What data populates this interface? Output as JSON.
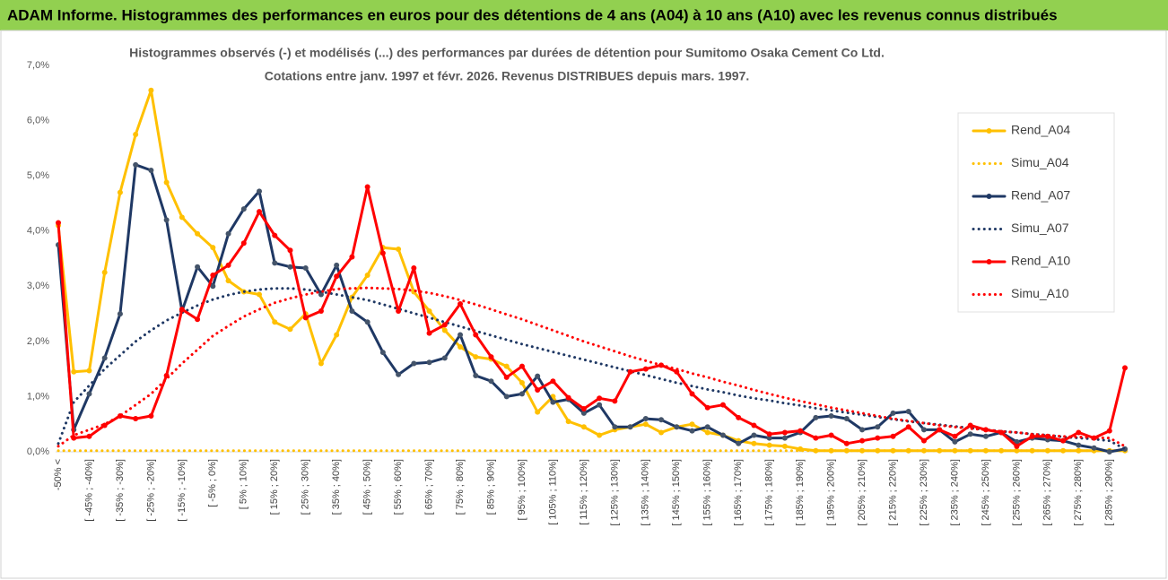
{
  "header": "ADAM Informe. Histogrammes des performances en euros pour des détentions de 4 ans (A04) à 10 ans (A10) avec les revenus connus distribués",
  "chart_data": {
    "type": "line",
    "title": "Histogrammes observés (-) et modélisés (...) des performances par durées de détention pour Sumitomo Osaka Cement Co Ltd.",
    "subtitle": "Cotations entre janv. 1997 et févr. 2026. Revenus DISTRIBUES depuis mars. 1997.",
    "categories": [
      "-50% <",
      null,
      "[ -45% ; -40%]",
      null,
      "[ -35% ; -30%]",
      null,
      "[ -25% ; -20%]",
      null,
      "[ -15% ; -10%]",
      null,
      "[ -5% ; 0%]",
      null,
      "[ 5% ; 10%]",
      null,
      "[ 15% ; 20%]",
      null,
      "[ 25% ; 30%]",
      null,
      "[ 35% ; 40%]",
      null,
      "[ 45% ; 50%]",
      null,
      "[ 55% ; 60%]",
      null,
      "[ 65% ; 70%]",
      null,
      "[ 75% ; 80%]",
      null,
      "[ 85% ; 90%]",
      null,
      "[ 95% ; 100%]",
      null,
      "[ 105% ; 110%]",
      null,
      "[ 115% ; 120%]",
      null,
      "[ 125% ; 130%]",
      null,
      "[ 135% ; 140%]",
      null,
      "[ 145% ; 150%]",
      null,
      "[ 155% ; 160%]",
      null,
      "[ 165% ; 170%]",
      null,
      "[ 175% ; 180%]",
      null,
      "[ 185% ; 190%]",
      null,
      "[ 195% ; 200%]",
      null,
      "[ 205% ; 210%]",
      null,
      "[ 215% ; 220%]",
      null,
      "[ 225% ; 230%]",
      null,
      "[ 235% ; 240%]",
      null,
      "[ 245% ; 250%]",
      null,
      "[ 255% ; 260%]",
      null,
      "[ 265% ; 270%]",
      null,
      "[ 275% ; 280%]",
      null,
      "[ 285% ; 290%]",
      null
    ],
    "series": [
      {
        "name": "Rend_A04",
        "color": "#ffc000",
        "line_style": "solid",
        "markers": true,
        "values": [
          4.1,
          1.45,
          1.47,
          3.25,
          4.7,
          5.75,
          6.55,
          4.88,
          4.25,
          3.95,
          3.7,
          3.1,
          2.9,
          2.85,
          2.35,
          2.22,
          2.5,
          1.6,
          2.12,
          2.8,
          3.2,
          3.7,
          3.67,
          2.9,
          2.55,
          2.2,
          1.9,
          1.72,
          1.68,
          1.55,
          1.25,
          0.72,
          1.0,
          0.55,
          0.45,
          0.3,
          0.4,
          0.45,
          0.5,
          0.35,
          0.45,
          0.5,
          0.35,
          0.3,
          0.2,
          0.15,
          0.12,
          0.1,
          0.05,
          0.02,
          0.02,
          0.02,
          0.02,
          0.02,
          0.02,
          0.02,
          0.02,
          0.02,
          0.02,
          0.02,
          0.02,
          0.02,
          0.02,
          0.02,
          0.02,
          0.02,
          0.02,
          0.02,
          0.02,
          0.02
        ]
      },
      {
        "name": "Simu_A04",
        "color": "#ffc000",
        "line_style": "dotted",
        "markers": false,
        "values": [
          0.02,
          0.02,
          0.02,
          0.02,
          0.02,
          0.02,
          0.02,
          0.02,
          0.02,
          0.02,
          0.02,
          0.02,
          0.02,
          0.02,
          0.02,
          0.02,
          0.02,
          0.02,
          0.02,
          0.02,
          0.02,
          0.02,
          0.02,
          0.02,
          0.02,
          0.02,
          0.02,
          0.02,
          0.02,
          0.02,
          0.02,
          0.02,
          0.02,
          0.02,
          0.02,
          0.02,
          0.02,
          0.02,
          0.02,
          0.02,
          0.02,
          0.02,
          0.02,
          0.02,
          0.02,
          0.02,
          0.02,
          0.02,
          0.02,
          0.02,
          0.02,
          0.02,
          0.02,
          0.02,
          0.02,
          0.02,
          0.02,
          0.02,
          0.02,
          0.02,
          0.02,
          0.02,
          0.02,
          0.02,
          0.02,
          0.02,
          0.02,
          0.02,
          0.02,
          0.02
        ]
      },
      {
        "name": "Rend_A07",
        "color": "#1f3864",
        "line_style": "solid",
        "markers": true,
        "values": [
          3.75,
          0.4,
          1.05,
          1.7,
          2.5,
          5.2,
          5.1,
          4.2,
          2.55,
          3.35,
          3.0,
          3.95,
          4.4,
          4.72,
          3.42,
          3.35,
          3.33,
          2.85,
          3.38,
          2.55,
          2.35,
          1.8,
          1.4,
          1.6,
          1.62,
          1.7,
          2.12,
          1.38,
          1.28,
          1.0,
          1.05,
          1.37,
          0.9,
          0.95,
          0.7,
          0.85,
          0.45,
          0.45,
          0.6,
          0.58,
          0.45,
          0.38,
          0.45,
          0.3,
          0.15,
          0.3,
          0.25,
          0.25,
          0.35,
          0.62,
          0.65,
          0.6,
          0.4,
          0.45,
          0.7,
          0.73,
          0.4,
          0.4,
          0.18,
          0.32,
          0.28,
          0.35,
          0.18,
          0.25,
          0.22,
          0.2,
          0.12,
          0.07,
          0.0,
          0.05
        ]
      },
      {
        "name": "Simu_A07",
        "color": "#1f3864",
        "line_style": "dotted",
        "markers": false,
        "values": [
          0.15,
          0.9,
          1.2,
          1.5,
          1.75,
          2.0,
          2.2,
          2.38,
          2.52,
          2.65,
          2.76,
          2.84,
          2.9,
          2.94,
          2.96,
          2.96,
          2.94,
          2.9,
          2.85,
          2.8,
          2.75,
          2.67,
          2.59,
          2.51,
          2.43,
          2.35,
          2.27,
          2.19,
          2.11,
          2.03,
          1.95,
          1.88,
          1.81,
          1.74,
          1.67,
          1.6,
          1.53,
          1.46,
          1.39,
          1.32,
          1.25,
          1.19,
          1.13,
          1.08,
          1.02,
          0.97,
          0.93,
          0.88,
          0.84,
          0.79,
          0.75,
          0.71,
          0.67,
          0.63,
          0.59,
          0.55,
          0.52,
          0.49,
          0.46,
          0.43,
          0.4,
          0.37,
          0.35,
          0.32,
          0.3,
          0.27,
          0.25,
          0.23,
          0.2,
          0.05
        ]
      },
      {
        "name": "Rend_A10",
        "color": "#ff0000",
        "line_style": "solid",
        "markers": true,
        "values": [
          4.15,
          0.25,
          0.28,
          0.48,
          0.65,
          0.6,
          0.65,
          1.38,
          2.58,
          2.4,
          3.2,
          3.38,
          3.78,
          4.35,
          3.92,
          3.65,
          2.43,
          2.55,
          3.18,
          3.53,
          4.8,
          3.6,
          2.55,
          3.33,
          2.15,
          2.3,
          2.68,
          2.12,
          1.72,
          1.35,
          1.55,
          1.12,
          1.28,
          0.98,
          0.78,
          0.97,
          0.92,
          1.45,
          1.5,
          1.57,
          1.45,
          1.05,
          0.8,
          0.85,
          0.62,
          0.48,
          0.32,
          0.35,
          0.38,
          0.25,
          0.3,
          0.15,
          0.2,
          0.25,
          0.28,
          0.45,
          0.2,
          0.4,
          0.28,
          0.48,
          0.4,
          0.35,
          0.1,
          0.28,
          0.28,
          0.2,
          0.35,
          0.25,
          0.38,
          1.52
        ]
      },
      {
        "name": "Simu_A10",
        "color": "#ff0000",
        "line_style": "dotted",
        "markers": false,
        "values": [
          0.1,
          0.3,
          0.4,
          0.5,
          0.65,
          0.85,
          1.05,
          1.32,
          1.6,
          1.85,
          2.1,
          2.28,
          2.45,
          2.58,
          2.7,
          2.78,
          2.85,
          2.9,
          2.95,
          2.96,
          2.97,
          2.96,
          2.95,
          2.92,
          2.88,
          2.82,
          2.75,
          2.67,
          2.58,
          2.49,
          2.4,
          2.3,
          2.2,
          2.1,
          2.0,
          1.91,
          1.82,
          1.73,
          1.65,
          1.57,
          1.5,
          1.42,
          1.35,
          1.27,
          1.2,
          1.12,
          1.05,
          0.98,
          0.92,
          0.86,
          0.8,
          0.75,
          0.7,
          0.65,
          0.6,
          0.56,
          0.52,
          0.48,
          0.45,
          0.42,
          0.4,
          0.37,
          0.35,
          0.32,
          0.3,
          0.28,
          0.27,
          0.26,
          0.25,
          0.1
        ]
      }
    ],
    "ylim": [
      0,
      7
    ],
    "yticks": [
      {
        "value": 0,
        "label": "0,0%"
      },
      {
        "value": 1,
        "label": "1,0%"
      },
      {
        "value": 2,
        "label": "2,0%"
      },
      {
        "value": 3,
        "label": "3,0%"
      },
      {
        "value": 4,
        "label": "4,0%"
      },
      {
        "value": 5,
        "label": "5,0%"
      },
      {
        "value": 6,
        "label": "6,0%"
      },
      {
        "value": 7,
        "label": "7,0%"
      }
    ],
    "grid": false,
    "legend": "right"
  }
}
